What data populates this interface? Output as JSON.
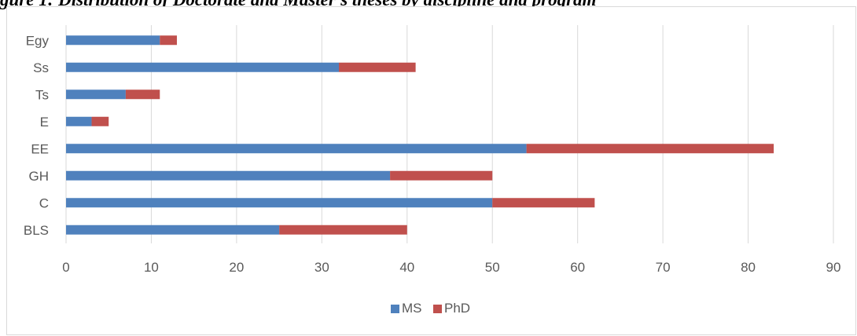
{
  "caption": "gure 1: Distribution of Doctorate and Master's theses by discipline and program",
  "colors": {
    "ms": "#4f81bd",
    "phd": "#c0504d",
    "grid": "#d9d9d9",
    "text": "#595959"
  },
  "chart_data": {
    "type": "bar",
    "orientation": "horizontal",
    "stacked": true,
    "title": "",
    "xlabel": "",
    "ylabel": "",
    "categories": [
      "Egy",
      "Ss",
      "Ts",
      "E",
      "EE",
      "GH",
      "C",
      "BLS"
    ],
    "series": [
      {
        "name": "MS",
        "values": [
          11,
          32,
          7,
          3,
          54,
          38,
          50,
          25
        ]
      },
      {
        "name": "PhD",
        "values": [
          2,
          9,
          4,
          2,
          29,
          12,
          12,
          15
        ]
      }
    ],
    "xlim": [
      0,
      90
    ],
    "xticks": [
      "0",
      "10",
      "20",
      "30",
      "40",
      "50",
      "60",
      "70",
      "80",
      "90"
    ],
    "grid": "vertical",
    "legend_position": "bottom"
  }
}
